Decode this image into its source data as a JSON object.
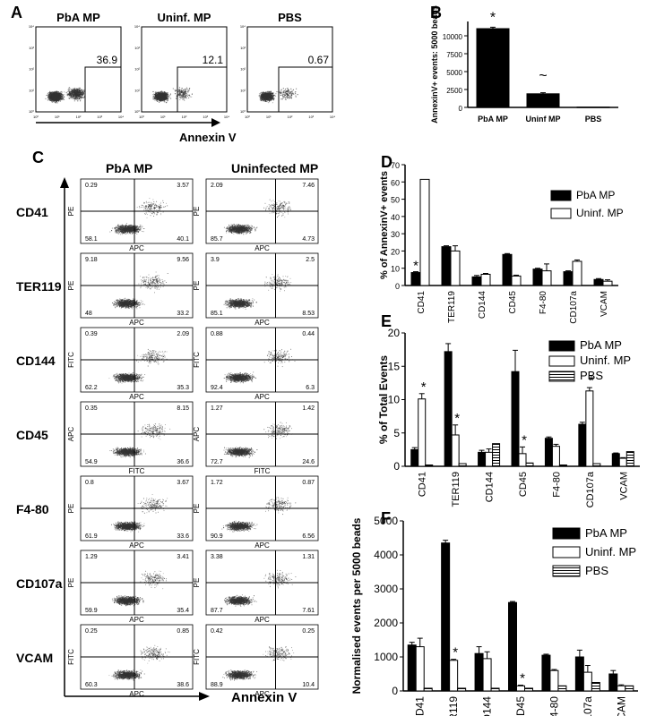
{
  "panelA": {
    "letter": "A",
    "xlabel": "Annexin V",
    "plots": [
      {
        "title": "PbA MP",
        "gate": "36.9"
      },
      {
        "title": "Uninf. MP",
        "gate": "12.1"
      },
      {
        "title": "PBS",
        "gate": "0.67"
      }
    ]
  },
  "panelC": {
    "letter": "C",
    "col1": "PbA MP",
    "col2": "Uninfected MP",
    "xlabel": "Annexin V",
    "rows": [
      {
        "label": "CD41",
        "yaxis": "PE",
        "xaxis": "APC",
        "pba": [
          "0.29",
          "3.57",
          "58.1",
          "40.1"
        ],
        "uninf": [
          "2.09",
          "7.46",
          "85.7",
          "4.73"
        ]
      },
      {
        "label": "TER119",
        "yaxis": "PE",
        "xaxis": "APC",
        "pba": [
          "9.18",
          "9.56",
          "48",
          "33.2"
        ],
        "uninf": [
          "3.9",
          "2.5",
          "85.1",
          "8.53"
        ]
      },
      {
        "label": "CD144",
        "yaxis": "FITC",
        "xaxis": "APC",
        "pba": [
          "0.39",
          "2.09",
          "62.2",
          "35.3"
        ],
        "uninf": [
          "0.88",
          "0.44",
          "92.4",
          "6.3"
        ]
      },
      {
        "label": "CD45",
        "yaxis": "APC",
        "xaxis": "FITC",
        "pba": [
          "0.35",
          "8.15",
          "54.9",
          "36.6"
        ],
        "uninf": [
          "1.27",
          "1.42",
          "72.7",
          "24.6"
        ]
      },
      {
        "label": "F4-80",
        "yaxis": "PE",
        "xaxis": "APC",
        "pba": [
          "0.8",
          "3.67",
          "61.9",
          "33.6"
        ],
        "uninf": [
          "1.72",
          "0.87",
          "90.9",
          "6.56"
        ]
      },
      {
        "label": "CD107a",
        "yaxis": "PE",
        "xaxis": "APC",
        "pba": [
          "1.29",
          "3.41",
          "59.9",
          "35.4"
        ],
        "uninf": [
          "3.38",
          "1.31",
          "87.7",
          "7.61"
        ]
      },
      {
        "label": "VCAM",
        "yaxis": "FITC",
        "xaxis": "APC",
        "pba": [
          "0.25",
          "0.85",
          "60.3",
          "38.6"
        ],
        "uninf": [
          "0.42",
          "0.25",
          "88.9",
          "10.4"
        ]
      }
    ]
  },
  "chart_data": [
    {
      "panel": "B",
      "type": "bar",
      "categories": [
        "PbA MP",
        "Uninf MP",
        "PBS"
      ],
      "values": [
        11000,
        1900,
        40
      ],
      "errors": [
        200,
        150,
        0
      ],
      "annotations": [
        "*",
        "~",
        ""
      ],
      "ylabel": "AnnexinV+ events: 5000 beads",
      "ylim": [
        0,
        12000
      ],
      "yticks": [
        0,
        2500,
        5000,
        7500,
        10000
      ],
      "colors": [
        "#000000"
      ]
    },
    {
      "panel": "D",
      "type": "bar",
      "categories": [
        "CD41",
        "TER119",
        "CD144",
        "CD45",
        "F4-80",
        "CD107a",
        "VCAM"
      ],
      "series": [
        {
          "name": "PbA MP",
          "values": [
            7.5,
            22.5,
            5,
            18,
            9.5,
            8,
            3.5
          ],
          "errors": [
            0.5,
            0.5,
            0.8,
            0.5,
            0.5,
            0.5,
            0.5
          ],
          "color": "#000000"
        },
        {
          "name": "Uninf. MP",
          "values": [
            61.5,
            20,
            6.5,
            5.5,
            8.5,
            14,
            2.5
          ],
          "errors": [
            0,
            3,
            0.5,
            0.5,
            4,
            0.8,
            0.8
          ],
          "color": "#ffffff"
        }
      ],
      "annotations": [
        {
          "category": "CD41",
          "text": "*"
        }
      ],
      "ylabel": "% of AnnexinV+ events",
      "ylim": [
        0,
        70
      ],
      "yticks": [
        0,
        10,
        20,
        30,
        40,
        50,
        60,
        70
      ],
      "legend": "top-right"
    },
    {
      "panel": "E",
      "type": "bar",
      "categories": [
        "CD41",
        "TER119",
        "CD144",
        "CD45",
        "F4-80",
        "CD107a",
        "VCAM"
      ],
      "series": [
        {
          "name": "PbA MP",
          "values": [
            2.5,
            17.2,
            2.1,
            14.2,
            4.2,
            6.3,
            1.9
          ],
          "errors": [
            0.3,
            1.2,
            0.3,
            3.2,
            0.2,
            0.3,
            0.1
          ],
          "color": "#000000"
        },
        {
          "name": "Uninf.  MP",
          "values": [
            10.1,
            4.7,
            2.1,
            1.9,
            3,
            11.3,
            1.2
          ],
          "errors": [
            0.8,
            1.5,
            0.5,
            1,
            0.3,
            0.5,
            0.1
          ],
          "color": "#ffffff"
        },
        {
          "name": "PBS",
          "values": [
            0.2,
            0.4,
            3.4,
            0.5,
            0.2,
            0.4,
            2.2
          ],
          "errors": [
            0,
            0,
            0,
            0,
            0,
            0,
            0
          ],
          "color": "hatch"
        }
      ],
      "annotations": [
        {
          "category": "CD41",
          "text": "*"
        },
        {
          "category": "TER119",
          "text": "*"
        },
        {
          "category": "CD45",
          "text": "*"
        },
        {
          "category": "CD107a",
          "text": "*"
        }
      ],
      "ylabel": "% of Total Events",
      "ylim": [
        0,
        20
      ],
      "yticks": [
        0,
        5,
        10,
        15,
        20
      ],
      "legend": "top-right"
    },
    {
      "panel": "F",
      "type": "bar",
      "categories": [
        "CD41",
        "TER119",
        "CD144",
        "CD45",
        "F4-80",
        "CD107a",
        "VCAM"
      ],
      "series": [
        {
          "name": "PbA MP",
          "values": [
            1350,
            4350,
            1100,
            2600,
            1050,
            1000,
            500
          ],
          "errors": [
            80,
            80,
            200,
            30,
            30,
            200,
            100
          ],
          "color": "#000000"
        },
        {
          "name": "Uninf. MP",
          "values": [
            1300,
            900,
            950,
            150,
            600,
            550,
            150
          ],
          "errors": [
            250,
            30,
            200,
            20,
            30,
            200,
            30
          ],
          "color": "#ffffff"
        },
        {
          "name": "PBS",
          "values": [
            80,
            80,
            80,
            80,
            150,
            250,
            150
          ],
          "errors": [
            0,
            0,
            0,
            0,
            0,
            0,
            0
          ],
          "color": "hatch"
        }
      ],
      "annotations": [
        {
          "category": "TER119",
          "text": "*"
        },
        {
          "category": "CD45",
          "text": "*"
        }
      ],
      "ylabel": "Normalised events per 5000 beads",
      "ylim": [
        0,
        5000
      ],
      "yticks": [
        0,
        1000,
        2000,
        3000,
        4000,
        5000
      ],
      "legend": "top-right"
    }
  ],
  "letters": {
    "B": "B",
    "D": "D",
    "E": "E",
    "F": "F"
  }
}
